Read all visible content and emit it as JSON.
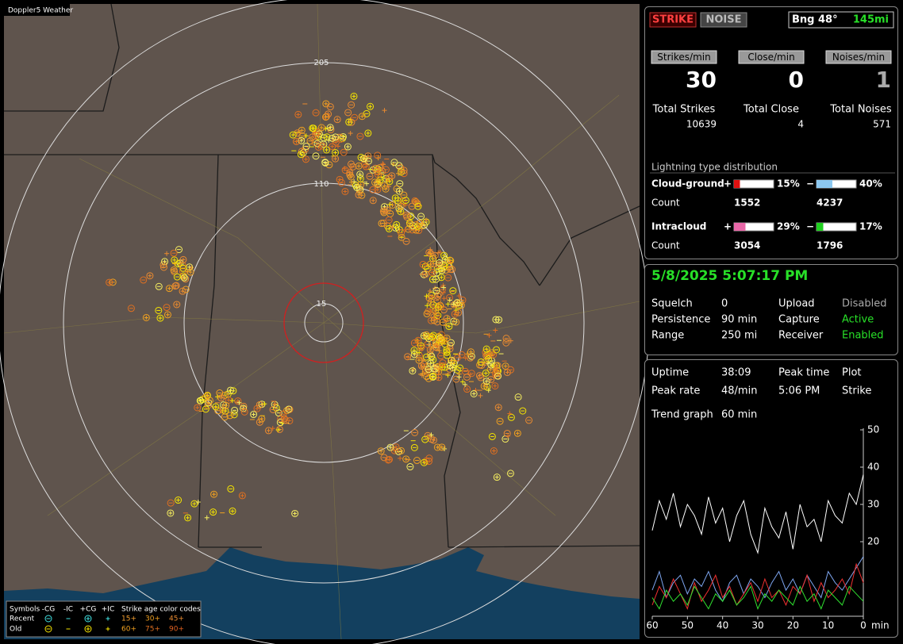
{
  "map": {
    "title": "Doppler5 Weather",
    "ring_labels": [
      "205",
      "110",
      "15"
    ],
    "legend": {
      "symbols_label": "Symbols",
      "symbol_headers": [
        "-CG",
        "-IC",
        "+CG",
        "+IC"
      ],
      "age_label": "Strike age color codes",
      "rows": [
        {
          "name": "Recent",
          "ages": [
            "15+",
            "30+",
            "45+"
          ]
        },
        {
          "name": "Old",
          "ages": [
            "60+",
            "75+",
            "90+"
          ]
        }
      ]
    }
  },
  "status": {
    "strike": "STRIKE",
    "noise": "NOISE",
    "bearing": "Bng 48°",
    "distance": "145mi"
  },
  "rates": [
    {
      "label": "Strikes/min",
      "value": 30,
      "total_label": "Total Strikes",
      "total": 10639
    },
    {
      "label": "Close/min",
      "value": 0,
      "total_label": "Total Close",
      "total": 4
    },
    {
      "label": "Noises/min",
      "value": 1,
      "total_label": "Total Noises",
      "total": 571
    }
  ],
  "distribution": {
    "title": "Lightning type distribution",
    "rows": [
      {
        "name": "Cloud-ground",
        "count_label": "Count",
        "items": [
          {
            "sign": "+",
            "percent": 15,
            "percent_label": "15%",
            "count": 1552,
            "color": "#e01010"
          },
          {
            "sign": "−",
            "percent": 40,
            "percent_label": "40%",
            "count": 4237,
            "color": "#8cc8f0"
          }
        ]
      },
      {
        "name": "Intracloud",
        "count_label": "Count",
        "items": [
          {
            "sign": "+",
            "percent": 29,
            "percent_label": "29%",
            "count": 3054,
            "color": "#e868a8"
          },
          {
            "sign": "−",
            "percent": 17,
            "percent_label": "17%",
            "count": 1796,
            "color": "#20d020"
          }
        ]
      }
    ]
  },
  "clock": "5/8/2025 5:07:17 PM",
  "settings": [
    [
      "Squelch",
      0,
      "Upload",
      "Disabled"
    ],
    [
      "Persistence",
      "90 min",
      "Capture",
      "Active"
    ],
    [
      "Range",
      "250 mi",
      "Receiver",
      "Enabled"
    ]
  ],
  "stats": [
    [
      "Uptime",
      "38:09",
      "Peak time",
      "Plot"
    ],
    [
      "Peak rate",
      "48/min",
      "5:06 PM",
      "Strike"
    ],
    [
      "Trend graph",
      "60 min"
    ]
  ],
  "chart_data": {
    "type": "line",
    "x_unit": "min",
    "x": [
      60,
      58,
      56,
      54,
      52,
      50,
      48,
      46,
      44,
      42,
      40,
      38,
      36,
      34,
      32,
      30,
      28,
      26,
      24,
      22,
      20,
      18,
      16,
      14,
      12,
      10,
      8,
      6,
      4,
      2,
      0
    ],
    "xlim": [
      60,
      0
    ],
    "xticks": [
      60,
      50,
      40,
      30,
      20,
      10,
      0
    ],
    "ylim": [
      0,
      50
    ],
    "yticks": [
      20,
      30,
      40,
      50
    ],
    "series": [
      {
        "color": "#ffffff",
        "values": [
          23,
          31,
          26,
          33,
          24,
          30,
          27,
          22,
          32,
          25,
          29,
          20,
          27,
          31,
          22,
          17,
          29,
          24,
          21,
          28,
          18,
          30,
          24,
          26,
          20,
          31,
          27,
          25,
          33,
          30,
          38
        ]
      },
      {
        "color": "#7ea6f0",
        "values": [
          7,
          12,
          5,
          9,
          11,
          6,
          10,
          8,
          12,
          7,
          4,
          9,
          11,
          6,
          10,
          8,
          5,
          9,
          12,
          7,
          10,
          6,
          11,
          8,
          5,
          12,
          9,
          7,
          10,
          13,
          16
        ]
      },
      {
        "color": "#f03030",
        "values": [
          3,
          8,
          5,
          10,
          6,
          2,
          9,
          4,
          7,
          11,
          5,
          8,
          3,
          6,
          9,
          4,
          10,
          5,
          7,
          3,
          8,
          6,
          11,
          4,
          9,
          5,
          7,
          10,
          6,
          14,
          9
        ]
      },
      {
        "color": "#30e030",
        "values": [
          5,
          2,
          7,
          4,
          6,
          3,
          8,
          5,
          2,
          6,
          4,
          7,
          3,
          5,
          8,
          2,
          6,
          4,
          7,
          5,
          3,
          8,
          4,
          6,
          2,
          7,
          5,
          3,
          8,
          6,
          4
        ]
      }
    ]
  }
}
